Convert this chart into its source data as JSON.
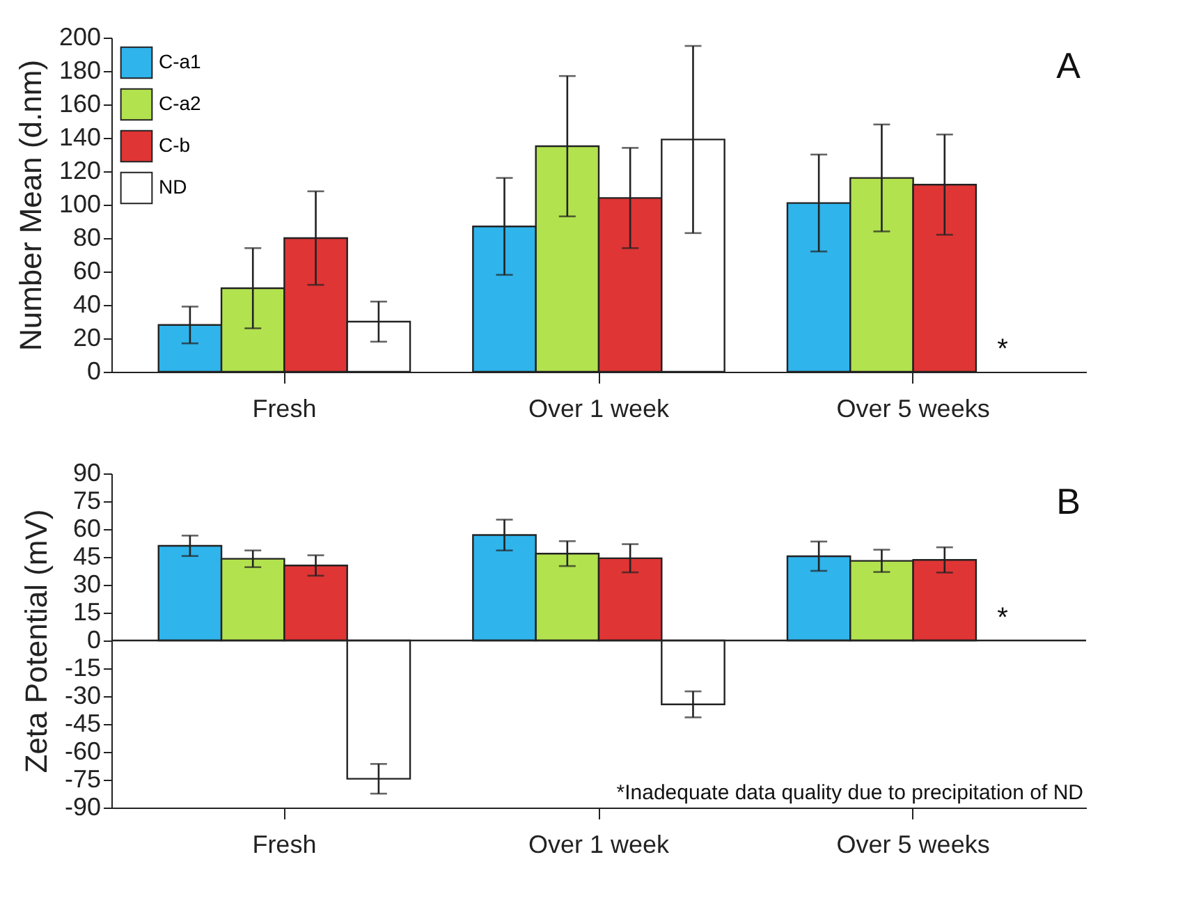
{
  "chart_data": [
    {
      "type": "bar",
      "ylabel": "Number Mean (d.nm)",
      "categories": [
        "Fresh",
        "Over 1 week",
        "Over 5 weeks"
      ],
      "series": [
        {
          "name": "C-a1",
          "color": "#2fb4ec",
          "values": [
            28,
            87,
            101
          ],
          "errors": [
            11,
            29,
            29
          ]
        },
        {
          "name": "C-a2",
          "color": "#b3e24f",
          "values": [
            50,
            135,
            116
          ],
          "errors": [
            24,
            42,
            32
          ]
        },
        {
          "name": "C-b",
          "color": "#e03535",
          "values": [
            80,
            104,
            112
          ],
          "errors": [
            28,
            30,
            30
          ]
        },
        {
          "name": "ND",
          "color": "#ffffff",
          "values": [
            30,
            139,
            null
          ],
          "errors": [
            12,
            56,
            null
          ]
        }
      ],
      "ylim": [
        0,
        200
      ],
      "yticks": [
        0,
        20,
        40,
        60,
        80,
        100,
        120,
        140,
        160,
        180,
        200
      ],
      "legend": "top left",
      "annotations": [
        "A",
        "*"
      ]
    },
    {
      "type": "bar",
      "ylabel": "Zeta Potential (mV)",
      "categories": [
        "Fresh",
        "Over 1 week",
        "Over 5 weeks"
      ],
      "series": [
        {
          "color": "#2fb4ec",
          "values": [
            51,
            56.8,
            45.4
          ],
          "errors": [
            5.5,
            8.3,
            7.9
          ]
        },
        {
          "color": "#b3e24f",
          "values": [
            44,
            46.8,
            42.9
          ],
          "errors": [
            4.5,
            6.7,
            6
          ]
        },
        {
          "color": "#e03535",
          "values": [
            40.4,
            44.3,
            43.4
          ],
          "errors": [
            5.5,
            7.6,
            6.8
          ]
        },
        {
          "color": "#ffffff",
          "values": [
            -74.5,
            -34.4,
            null
          ],
          "errors": [
            8,
            7,
            null
          ]
        }
      ],
      "ylim": [
        -90,
        90
      ],
      "yticks": [
        -90,
        -75,
        -60,
        -45,
        -30,
        -15,
        0,
        15,
        30,
        45,
        60,
        75,
        90
      ],
      "ref_lines": [
        {
          "axis": "y",
          "value": 0
        }
      ],
      "annotations": [
        "B",
        "*",
        "*Inadequate data quality due to precipitation of ND"
      ]
    }
  ]
}
